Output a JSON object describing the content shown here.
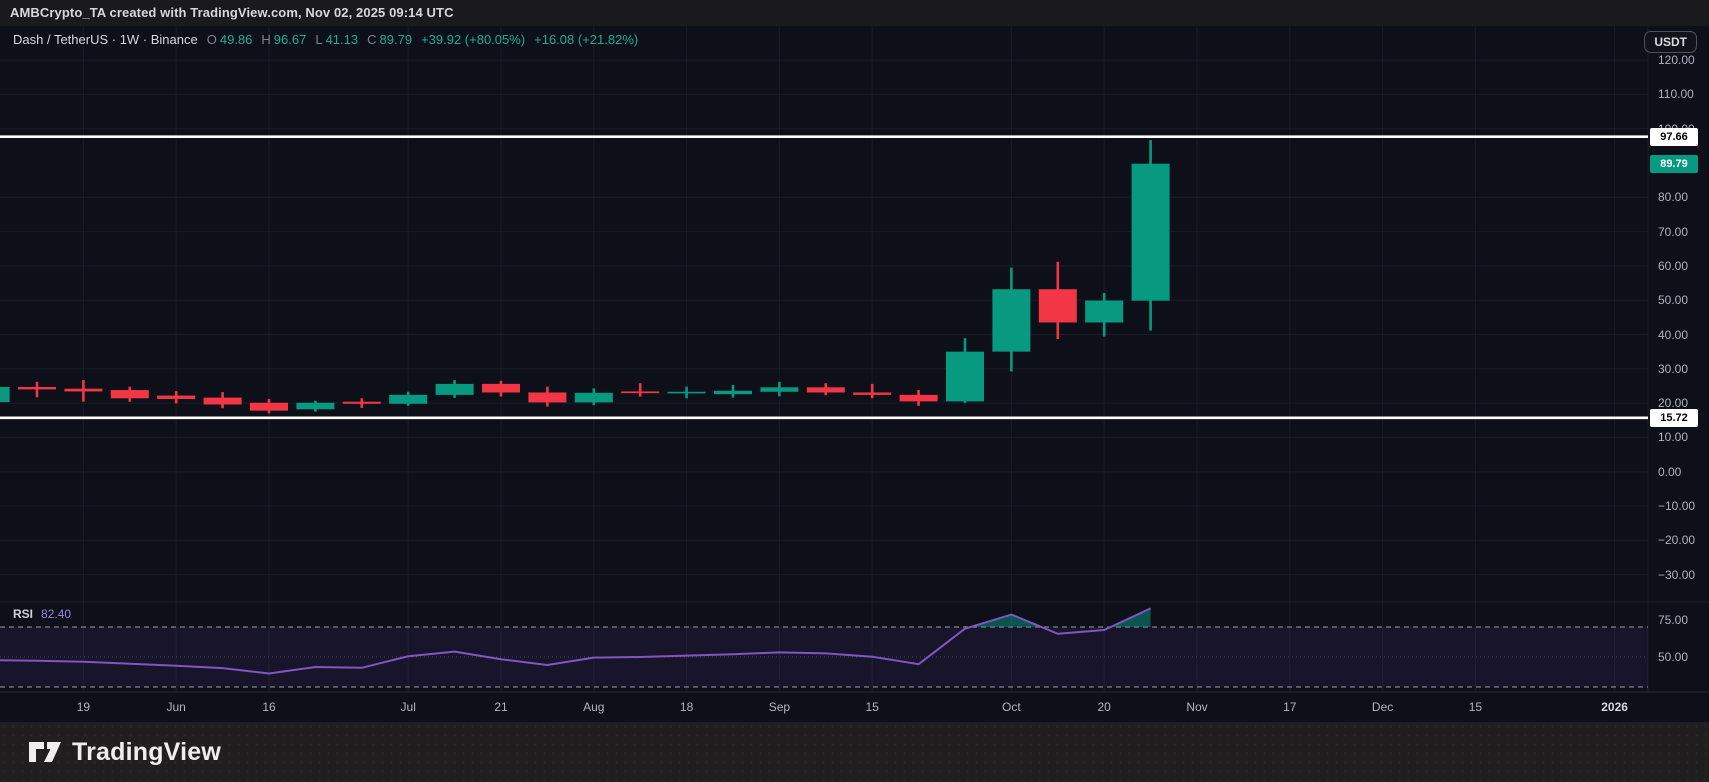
{
  "page": {
    "top_bar": {
      "attribution": "AMBCrypto_TA created with TradingView.com, Nov 02, 2025 09:14 UTC"
    },
    "footer": {
      "brand": "TradingView"
    }
  },
  "chart": {
    "legend": {
      "title": "Dash / TetherUS · 1W · Binance",
      "o_label": "O",
      "o_value": "49.86",
      "h_label": "H",
      "h_value": "96.67",
      "l_label": "L",
      "l_value": "41.13",
      "c_label": "C",
      "c_value": "89.79",
      "change_1": "+39.92 (+80.05%)",
      "change_2": "+16.08 (+21.82%)"
    },
    "price_axis": {
      "currency_button": "USDT",
      "last_price_label": "89.79",
      "ticks": [
        {
          "value": 120,
          "label": "120.00"
        },
        {
          "value": 110,
          "label": "110.00"
        },
        {
          "value": 100,
          "label": "100.00"
        },
        {
          "value": 80,
          "label": "80.00"
        },
        {
          "value": 70,
          "label": "70.00"
        },
        {
          "value": 60,
          "label": "60.00"
        },
        {
          "value": 50,
          "label": "50.00"
        },
        {
          "value": 40,
          "label": "40.00"
        },
        {
          "value": 30,
          "label": "30.00"
        },
        {
          "value": 20,
          "label": "20.00"
        },
        {
          "value": 10,
          "label": "10.00"
        },
        {
          "value": 0,
          "label": "0.00"
        },
        {
          "value": -10,
          "label": "−10.00"
        },
        {
          "value": -20,
          "label": "−20.00"
        },
        {
          "value": -30,
          "label": "−30.00"
        }
      ]
    },
    "time_axis": {
      "ticks": [
        {
          "week": 1,
          "label": "19"
        },
        {
          "week": 3,
          "label": "Jun"
        },
        {
          "week": 5,
          "label": "16"
        },
        {
          "week": 8,
          "label": "Jul"
        },
        {
          "week": 10,
          "label": "21"
        },
        {
          "week": 12,
          "label": "Aug"
        },
        {
          "week": 14,
          "label": "18"
        },
        {
          "week": 16,
          "label": "Sep"
        },
        {
          "week": 18,
          "label": "15"
        },
        {
          "week": 21,
          "label": "Oct"
        },
        {
          "week": 23,
          "label": "20"
        },
        {
          "week": 25,
          "label": "Nov"
        },
        {
          "week": 27,
          "label": "17"
        },
        {
          "week": 29,
          "label": "Dec"
        },
        {
          "week": 31,
          "label": "15"
        },
        {
          "week": 34,
          "label": "2026"
        }
      ]
    },
    "drawings": [
      {
        "type": "horizontal-line",
        "price": 97.66,
        "label": "97.66"
      },
      {
        "type": "horizontal-line",
        "price": 15.72,
        "label": "15.72"
      }
    ],
    "rsi": {
      "title": "RSI",
      "value_label": "82.40",
      "upper_tick": "75.00",
      "middle_tick": "50.00",
      "overbought_level": 70,
      "oversold_level": 30
    }
  },
  "chart_data": {
    "type": "candlestick",
    "title": "Dash / TetherUS · 1W · Binance",
    "interval": "1W",
    "exchange": "Binance",
    "ylim_visible": [
      -30,
      120
    ],
    "grid": true,
    "horizontal_lines": [
      97.66,
      15.72
    ],
    "lead_in_candle": {
      "o": 20.3,
      "c": 24.7
    },
    "candles": [
      {
        "date": "May 12",
        "o": 24.7,
        "h": 26.2,
        "l": 21.7,
        "c": 24.0
      },
      {
        "date": "May 19",
        "o": 24.2,
        "h": 26.7,
        "l": 20.4,
        "c": 23.4
      },
      {
        "date": "May 26",
        "o": 23.8,
        "h": 24.8,
        "l": 20.4,
        "c": 21.4
      },
      {
        "date": "Jun 2",
        "o": 22.2,
        "h": 23.5,
        "l": 19.9,
        "c": 21.2
      },
      {
        "date": "Jun 9",
        "o": 21.6,
        "h": 23.2,
        "l": 18.5,
        "c": 19.6
      },
      {
        "date": "Jun 16",
        "o": 20.1,
        "h": 21.2,
        "l": 17.0,
        "c": 17.8
      },
      {
        "date": "Jun 23",
        "o": 18.2,
        "h": 20.7,
        "l": 17.5,
        "c": 20.1
      },
      {
        "date": "Jun 30",
        "o": 20.4,
        "h": 21.4,
        "l": 18.6,
        "c": 19.8
      },
      {
        "date": "Jul 7",
        "o": 19.8,
        "h": 23.3,
        "l": 19.2,
        "c": 22.4
      },
      {
        "date": "Jul 14",
        "o": 22.4,
        "h": 26.7,
        "l": 21.5,
        "c": 25.6
      },
      {
        "date": "Jul 21",
        "o": 25.6,
        "h": 26.5,
        "l": 21.9,
        "c": 23.1
      },
      {
        "date": "Jul 28",
        "o": 23.1,
        "h": 24.8,
        "l": 19.0,
        "c": 20.2
      },
      {
        "date": "Aug 4",
        "o": 20.2,
        "h": 24.3,
        "l": 19.4,
        "c": 23.0
      },
      {
        "date": "Aug 11",
        "o": 23.4,
        "h": 25.8,
        "l": 21.9,
        "c": 22.9
      },
      {
        "date": "Aug 18",
        "o": 22.9,
        "h": 24.8,
        "l": 21.4,
        "c": 23.3
      },
      {
        "date": "Aug 25",
        "o": 22.6,
        "h": 25.3,
        "l": 21.6,
        "c": 23.6
      },
      {
        "date": "Sep 1",
        "o": 23.3,
        "h": 26.2,
        "l": 22.0,
        "c": 24.6
      },
      {
        "date": "Sep 8",
        "o": 24.6,
        "h": 25.8,
        "l": 22.3,
        "c": 23.1
      },
      {
        "date": "Sep 15",
        "o": 23.1,
        "h": 25.6,
        "l": 21.4,
        "c": 22.4
      },
      {
        "date": "Sep 22",
        "o": 22.4,
        "h": 23.8,
        "l": 19.2,
        "c": 20.5
      },
      {
        "date": "Sep 29",
        "o": 20.5,
        "h": 38.9,
        "l": 20.0,
        "c": 35.0
      },
      {
        "date": "Oct 6",
        "o": 35.0,
        "h": 59.5,
        "l": 29.2,
        "c": 53.2
      },
      {
        "date": "Oct 13",
        "o": 53.2,
        "h": 61.2,
        "l": 38.7,
        "c": 43.5
      },
      {
        "date": "Oct 20",
        "o": 43.5,
        "h": 52.1,
        "l": 39.4,
        "c": 49.9
      },
      {
        "date": "Oct 27",
        "o": 49.86,
        "h": 96.67,
        "l": 41.13,
        "c": 89.79
      }
    ],
    "rsi_series": {
      "name": "RSI",
      "current": 82.4,
      "lead_in": 47.9,
      "values": [
        47.5,
        46.8,
        45.5,
        44.2,
        42.6,
        39.0,
        43.3,
        42.8,
        50.5,
        53.6,
        48.5,
        44.7,
        49.6,
        50.0,
        50.9,
        51.8,
        53.1,
        52.4,
        50.2,
        45.2,
        68.9,
        78.3,
        65.5,
        68.0,
        82.4
      ]
    }
  },
  "colors": {
    "up": "#089981",
    "down": "#f23645",
    "rsi_line": "#7e57c2",
    "rsi_band": "rgba(103,58,183,0.12)",
    "overbought_fill": "rgba(8,153,129,0.5)",
    "ray": "#ffffff",
    "last_price_badge": "#089981",
    "background": "#0d1019"
  }
}
